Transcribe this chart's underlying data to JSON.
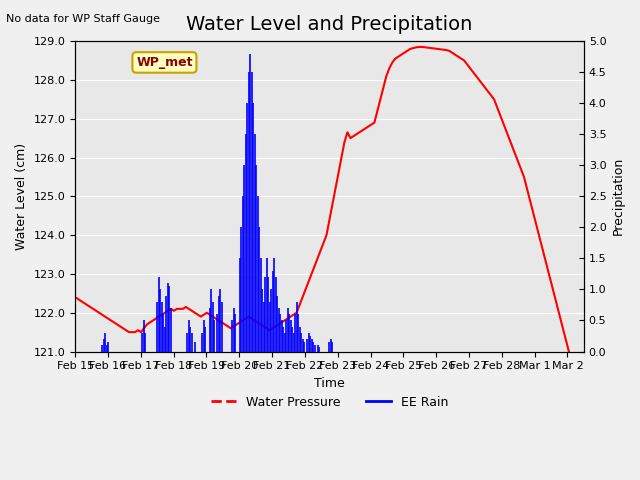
{
  "title": "Water Level and Precipitation",
  "subtitle": "No data for WP Staff Gauge",
  "xlabel": "Time",
  "ylabel_left": "Water Level (cm)",
  "ylabel_right": "Precipitation",
  "annotation": "WP_met",
  "ylim_left": [
    121.0,
    129.0
  ],
  "ylim_right": [
    0.0,
    5.0
  ],
  "yticks_left": [
    121.0,
    122.0,
    123.0,
    124.0,
    125.0,
    126.0,
    127.0,
    128.0,
    129.0
  ],
  "yticks_right": [
    0.0,
    0.5,
    1.0,
    1.5,
    2.0,
    2.5,
    3.0,
    3.5,
    4.0,
    4.5,
    5.0
  ],
  "legend_labels": [
    "Water Pressure",
    "EE Rain"
  ],
  "legend_colors": [
    "#ff0000",
    "#0000ff"
  ],
  "water_pressure_color": "#ff0000",
  "rain_color": "#0000ff",
  "bg_color": "#e8e8e8",
  "plot_bg_color": "#e8e8e8",
  "grid_color": "#ffffff",
  "water_pressure_lw": 1.5,
  "rain_lw": 1.5,
  "title_fontsize": 14,
  "label_fontsize": 9,
  "tick_fontsize": 8,
  "xtick_labels": [
    "Feb 15",
    "Feb 16",
    "Feb 17",
    "Feb 18",
    "Feb 19",
    "Feb 20",
    "Feb 21",
    "Feb 22",
    "Feb 23",
    "Feb 24",
    "Feb 25",
    "Feb 26",
    "Feb 27",
    "Feb 28",
    "Mar 1",
    "Mar 2"
  ],
  "water_pressure_x": [
    0,
    0.2,
    0.4,
    0.6,
    0.8,
    1.0,
    1.2,
    1.4,
    1.6,
    1.8,
    2.0,
    2.2,
    2.4,
    2.6,
    2.8,
    3.0,
    3.2,
    3.4,
    3.6,
    3.8,
    4.0,
    4.2,
    4.4,
    4.6,
    4.8,
    5.0,
    5.2,
    5.4,
    5.6,
    5.8,
    6.0,
    6.2,
    6.4,
    6.6,
    6.8,
    7.0,
    7.2,
    7.4,
    7.6,
    7.8,
    8.0,
    8.2,
    8.4,
    8.6,
    8.8,
    9.0,
    9.2,
    9.4,
    9.6,
    9.8,
    10.0,
    10.2,
    10.4,
    10.6,
    10.8,
    11.0,
    11.2,
    11.4,
    11.6,
    11.8,
    12.0,
    12.2,
    12.4,
    12.6,
    12.8,
    13.0,
    13.2,
    13.4,
    13.6,
    13.8,
    14.0,
    14.2,
    14.4,
    14.6,
    14.8,
    15.0,
    15.2,
    15.4,
    15.6,
    15.8,
    16.0,
    16.2,
    16.4,
    16.6,
    16.8,
    17.0,
    17.2,
    17.4,
    17.6,
    17.8,
    18.0,
    18.2,
    18.4,
    18.6,
    18.8,
    19.0,
    19.2,
    19.4,
    19.6,
    19.8,
    20.0,
    20.2,
    20.4,
    20.6,
    20.8,
    21.0,
    21.2,
    21.4,
    21.6,
    21.8,
    22.0,
    22.2,
    22.4,
    22.6,
    22.8,
    23.0,
    23.2,
    23.4,
    23.6,
    23.8,
    24.0,
    24.2,
    24.4,
    24.6,
    24.8,
    25.0,
    25.2,
    25.4,
    25.6,
    25.8,
    26.0,
    26.2,
    26.4,
    26.6,
    26.8,
    27.0,
    27.2,
    27.4,
    27.6,
    27.8,
    28.0,
    28.2,
    28.4,
    28.6,
    28.8,
    29.0,
    29.2,
    29.4,
    29.6,
    29.8,
    30.0,
    30.2,
    30.4,
    30.6,
    30.8,
    31.0,
    31.2,
    31.4,
    31.6,
    31.8,
    32.0,
    32.2,
    32.4,
    32.6,
    32.8,
    33.0,
    33.2,
    33.4,
    33.6,
    33.8,
    34.0
  ],
  "water_pressure_y": [
    122.4,
    122.35,
    122.3,
    122.25,
    122.2,
    122.15,
    122.1,
    122.05,
    122.0,
    121.95,
    121.9,
    121.85,
    121.8,
    121.75,
    121.7,
    121.65,
    121.6,
    121.55,
    121.5,
    121.5,
    121.5,
    121.55,
    121.5,
    121.6,
    121.7,
    121.75,
    121.8,
    121.85,
    121.9,
    121.95,
    122.0,
    122.05,
    122.1,
    122.05,
    122.1,
    122.1,
    122.1,
    122.15,
    122.1,
    122.05,
    122.0,
    121.95,
    121.9,
    121.95,
    122.0,
    121.95,
    121.9,
    121.85,
    121.8,
    121.75,
    121.7,
    121.65,
    121.6,
    121.65,
    121.7,
    121.75,
    121.8,
    121.85,
    121.9,
    121.85,
    121.8,
    121.75,
    121.7,
    121.65,
    121.6,
    121.55,
    121.6,
    121.65,
    121.7,
    121.75,
    121.8,
    121.85,
    121.9,
    121.95,
    122.0,
    122.2,
    122.4,
    122.6,
    122.8,
    123.0,
    123.2,
    123.4,
    123.6,
    123.8,
    124.0,
    124.4,
    124.8,
    125.2,
    125.6,
    126.0,
    126.4,
    126.65,
    126.5,
    126.55,
    126.6,
    126.65,
    126.7,
    126.75,
    126.8,
    126.85,
    126.9,
    127.2,
    127.5,
    127.8,
    128.1,
    128.3,
    128.45,
    128.55,
    128.6,
    128.65,
    128.7,
    128.75,
    128.8,
    128.82,
    128.84,
    128.85,
    128.85,
    128.84,
    128.83,
    128.82,
    128.81,
    128.8,
    128.79,
    128.78,
    128.77,
    128.75,
    128.7,
    128.65,
    128.6,
    128.55,
    128.5,
    128.4,
    128.3,
    128.2,
    128.1,
    128.0,
    127.9,
    127.8,
    127.7,
    127.6,
    127.5,
    127.3,
    127.1,
    126.9,
    126.7,
    126.5,
    126.3,
    126.1,
    125.9,
    125.7,
    125.5,
    125.2,
    124.9,
    124.6,
    124.3,
    124.0,
    123.7,
    123.4,
    123.1,
    122.8,
    122.5,
    122.2,
    121.9,
    121.6,
    121.3,
    121.0,
    120.8,
    120.6,
    120.4,
    120.2,
    120.0
  ],
  "rain_x": [
    1.8,
    1.9,
    2.0,
    2.1,
    2.2,
    4.5,
    4.6,
    4.7,
    5.5,
    5.6,
    5.7,
    5.8,
    5.9,
    6.0,
    6.1,
    6.2,
    6.3,
    6.4,
    7.5,
    7.6,
    7.7,
    7.8,
    8.0,
    8.5,
    8.6,
    8.7,
    9.0,
    9.1,
    9.2,
    9.3,
    9.5,
    9.6,
    9.7,
    9.8,
    10.5,
    10.6,
    10.7,
    11.0,
    11.1,
    11.2,
    11.3,
    11.4,
    11.5,
    11.6,
    11.7,
    11.8,
    11.9,
    12.0,
    12.1,
    12.2,
    12.3,
    12.4,
    12.5,
    12.6,
    12.7,
    12.8,
    12.9,
    13.0,
    13.1,
    13.2,
    13.3,
    13.4,
    13.5,
    13.6,
    13.7,
    13.8,
    13.9,
    14.0,
    14.1,
    14.2,
    14.3,
    14.4,
    14.5,
    14.6,
    14.7,
    14.8,
    14.9,
    15.0,
    15.1,
    15.2,
    15.3,
    15.5,
    15.6,
    15.7,
    15.8,
    15.9,
    16.0,
    16.2,
    16.3,
    17.0,
    17.1,
    17.2
  ],
  "rain_y": [
    0.1,
    0.2,
    0.3,
    0.1,
    0.15,
    0.3,
    0.5,
    0.3,
    0.8,
    1.2,
    1.0,
    0.8,
    0.6,
    0.4,
    0.9,
    1.1,
    1.05,
    0.7,
    0.3,
    0.5,
    0.4,
    0.3,
    0.15,
    0.3,
    0.5,
    0.4,
    0.7,
    1.0,
    0.8,
    0.5,
    0.6,
    0.9,
    1.0,
    0.8,
    0.5,
    0.7,
    0.6,
    1.5,
    2.0,
    2.5,
    3.0,
    3.5,
    4.0,
    4.5,
    4.8,
    4.5,
    4.0,
    3.5,
    3.0,
    2.5,
    2.0,
    1.5,
    1.0,
    0.8,
    1.2,
    1.5,
    1.2,
    0.8,
    1.0,
    1.3,
    1.5,
    1.2,
    0.9,
    0.7,
    0.6,
    0.5,
    0.4,
    0.3,
    0.5,
    0.7,
    0.6,
    0.5,
    0.4,
    0.3,
    0.6,
    0.8,
    0.6,
    0.4,
    0.3,
    0.2,
    0.15,
    0.2,
    0.3,
    0.25,
    0.2,
    0.15,
    0.1,
    0.1,
    0.08,
    0.15,
    0.2,
    0.15
  ]
}
